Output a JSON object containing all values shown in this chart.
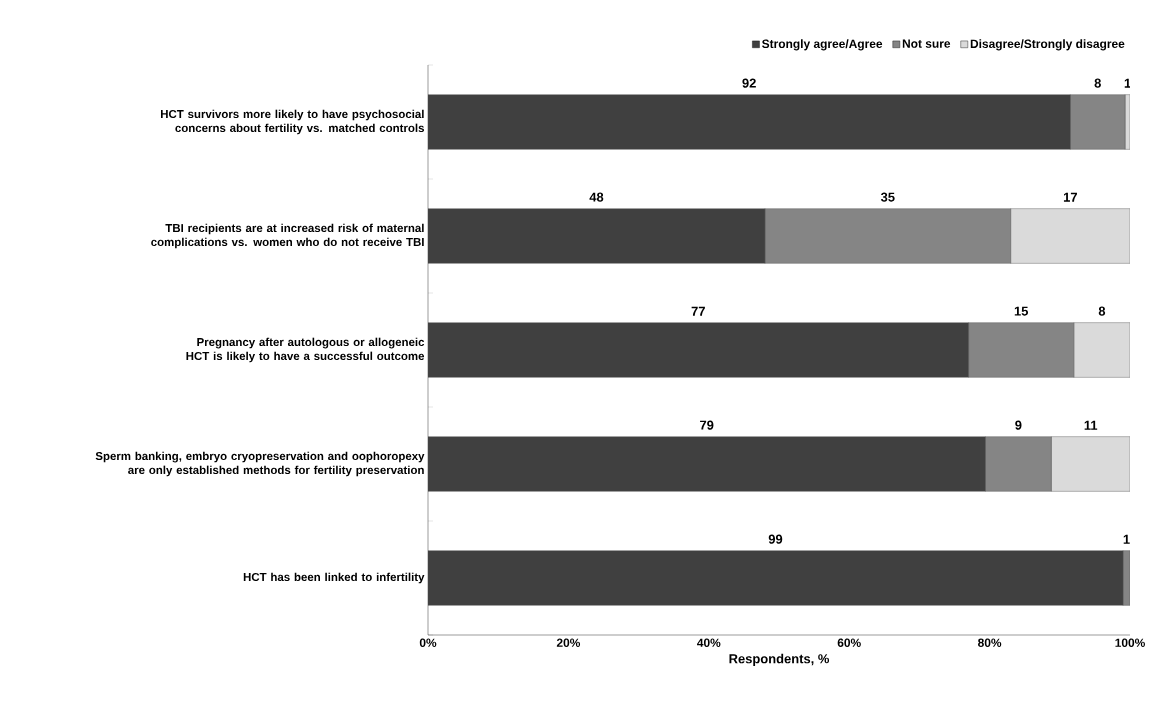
{
  "chart_data": {
    "type": "bar",
    "orientation": "horizontal",
    "stacked": true,
    "xlabel": "Respondents, %",
    "categories": [
      "HCT survivors more likely to have psychosocial concerns about fertility vs. matched controls",
      "TBI recipients are at increased risk of maternal complications vs. women who do not receive TBI",
      "Pregnancy after autologous or allogeneic HCT is likely to have a successful outcome",
      "Sperm banking, embryo cryopreservation and oophoropexy are only established methods for fertility preservation",
      "HCT has been linked to infertility"
    ],
    "series": [
      {
        "name": "Strongly agree/Agree",
        "color": "#404040",
        "values": [
          91.5,
          48,
          77,
          79.4,
          99
        ],
        "value_labels": [
          "92",
          "48",
          "77",
          "79",
          "99"
        ]
      },
      {
        "name": "Not sure",
        "color": "#858585",
        "values": [
          7.8,
          35,
          15,
          9.4,
          1
        ],
        "value_labels": [
          "8",
          "35",
          "15",
          "9",
          "1"
        ]
      },
      {
        "name": "Disagree/Strongly disagree",
        "color": "#dadada",
        "values": [
          0.7,
          17,
          8,
          11.2,
          null
        ],
        "value_labels": [
          "1",
          "17",
          "8",
          "11",
          null
        ]
      }
    ],
    "xlim": [
      0,
      100
    ],
    "xticks": [
      {
        "value": 0,
        "label": "0%"
      },
      {
        "value": 20,
        "label": "20%"
      },
      {
        "value": 40,
        "label": "40%"
      },
      {
        "value": 60,
        "label": "60%"
      },
      {
        "value": 80,
        "label": "80%"
      },
      {
        "value": 100,
        "label": "100%"
      }
    ],
    "legend": "top",
    "grid": false
  }
}
